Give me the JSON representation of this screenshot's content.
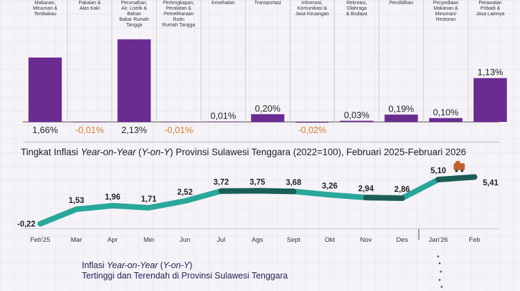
{
  "chart_data": [
    {
      "type": "bar",
      "categories": [
        "Makanan, Minuman & Tembakau",
        "Pakaian & Alas Kaki",
        "Perumahan, Air, Listrik & Bahan Bakar Rumah Tangga",
        "Perlengkapan, Peralatan & Pemeliharaan Rutin Rumah Tangga",
        "Kesehatan",
        "Transportasi",
        "Informasi, Komunikasi & Jasa Keuangan",
        "Rekreasi, Olahraga & Budaya",
        "Pendidikan",
        "Penyediaan Makanan & Minuman/ Restoran",
        "Perawatan Pribadi & Jasa Lainnya"
      ],
      "category_lines": [
        [
          "Makanan,",
          "Minuman &",
          "Tembakau"
        ],
        [
          "Pakaian &",
          "Alas Kaki"
        ],
        [
          "Perumahan,",
          "Air, Listrik &",
          "Bahan",
          "Bakar Rumah",
          "Tangga"
        ],
        [
          "Perlengkapan,",
          "Peralatan &",
          "Pemeliharaan",
          "Rutin",
          "Rumah Tangga"
        ],
        [
          "Kesehatan"
        ],
        [
          "Transportasi"
        ],
        [
          "Informasi,",
          "Komunikasi &",
          "Jasa Keuangan"
        ],
        [
          "Rekreasi,",
          "Olahraga",
          "& Budaya"
        ],
        [
          "Pendidikan"
        ],
        [
          "Penyediaan",
          "Makanan &",
          "Minuman/",
          "Restoran"
        ],
        [
          "Perawatan",
          "Pribadi &",
          "Jasa Lainnya"
        ]
      ],
      "values": [
        1.66,
        -0.01,
        2.13,
        -0.01,
        0.01,
        0.2,
        -0.02,
        0.03,
        0.19,
        0.1,
        1.13
      ],
      "value_labels": [
        "1,66%",
        "-0,01%",
        "2,13%",
        "-0,01%",
        "0,01%",
        "0,20%",
        "-0,02%",
        "0,03%",
        "0,19%",
        "0,10%",
        "1,13%"
      ],
      "colors": {
        "bar": "#6a2c91",
        "negative_label": "#e07b2a",
        "positive_label": "#1f1f1f"
      }
    },
    {
      "type": "line",
      "title_parts": [
        {
          "text": "Tingkat Inflasi ",
          "italic": false
        },
        {
          "text": "Year-on-Year",
          "italic": true
        },
        {
          "text": " (",
          "italic": false
        },
        {
          "text": "Y-on-Y",
          "italic": true
        },
        {
          "text": ") Provinsi Sulawesi Tenggara (2022=100), Februari 2025-Februari 2026",
          "italic": false
        }
      ],
      "x": [
        "Feb'25",
        "Mar",
        "Apr",
        "Mei",
        "Jun",
        "Jul",
        "Ags",
        "Sept",
        "Okt",
        "Nov",
        "Des",
        "Jan'26",
        "Feb"
      ],
      "values": [
        -0.22,
        1.53,
        1.96,
        1.71,
        2.52,
        3.72,
        3.75,
        3.68,
        3.26,
        2.94,
        2.86,
        5.1,
        5.41
      ],
      "value_labels": [
        "-0,22",
        "1,53",
        "1,96",
        "1,71",
        "2,52",
        "3,72",
        "3,75",
        "3,68",
        "3,26",
        "2,94",
        "2,86",
        "5,10",
        "5,41"
      ],
      "colors": {
        "line": "#2aa79b",
        "highlight": "#1b5e55",
        "marker": "#c0622e"
      }
    }
  ],
  "lower_section": {
    "title_line1_parts": [
      {
        "text": "Inflasi ",
        "italic": false
      },
      {
        "text": "Year-on-Year",
        "italic": true
      },
      {
        "text": " (",
        "italic": false
      },
      {
        "text": "Y-on-Y",
        "italic": true
      },
      {
        "text": ")",
        "italic": false
      }
    ],
    "title_line2": "Tertinggi dan Terendah di Provinsi Sulawesi Tenggara"
  }
}
